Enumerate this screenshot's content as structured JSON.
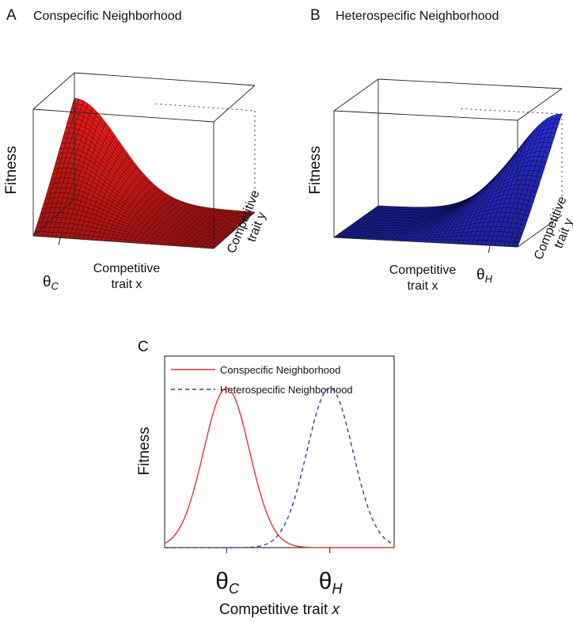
{
  "chart_data": [
    {
      "type": "surface",
      "panel_letter": "A",
      "title": "Conspecific Neighborhood",
      "zlabel": "Fitness",
      "xlabel": [
        "Competitive",
        "trait x"
      ],
      "ylabel": [
        "Competitive",
        "trait y"
      ],
      "x_tick_label": "θ",
      "x_tick_sub": "C",
      "optimum_x": 0.15,
      "peak_y": 0.0,
      "width": 0.35,
      "surface_color": "#e01b1b",
      "grid_color": "#3a0505"
    },
    {
      "type": "surface",
      "panel_letter": "B",
      "title": "Heterospecific Neighborhood",
      "zlabel": "Fitness",
      "xlabel": [
        "Competitive",
        "trait x"
      ],
      "ylabel": [
        "Competitive",
        "trait y"
      ],
      "x_tick_label": "θ",
      "x_tick_sub": "H",
      "optimum_x": 0.85,
      "peak_y": 1.0,
      "width": 0.35,
      "surface_color": "#2a2fd6",
      "grid_color": "#050530"
    },
    {
      "type": "line",
      "panel_letter": "C",
      "ylabel": "Fitness",
      "xlabel": "Competitive trait ",
      "xlabel_var": "x",
      "xlim": [
        0,
        1
      ],
      "ylim": [
        0,
        1.2
      ],
      "x_ticks": [
        {
          "x": 0.27,
          "label": "θ",
          "sub": "C"
        },
        {
          "x": 0.72,
          "label": "θ",
          "sub": "H"
        }
      ],
      "series": [
        {
          "name": "Conspecific Neighborhood",
          "mean": 0.27,
          "sd": 0.1,
          "color": "#e8303a",
          "dash": "none"
        },
        {
          "name": "Heterospecific Neighborhood",
          "mean": 0.72,
          "sd": 0.1,
          "color": "#3a3aa8",
          "dash": "5,4"
        }
      ],
      "legend_position": "top-left"
    }
  ]
}
